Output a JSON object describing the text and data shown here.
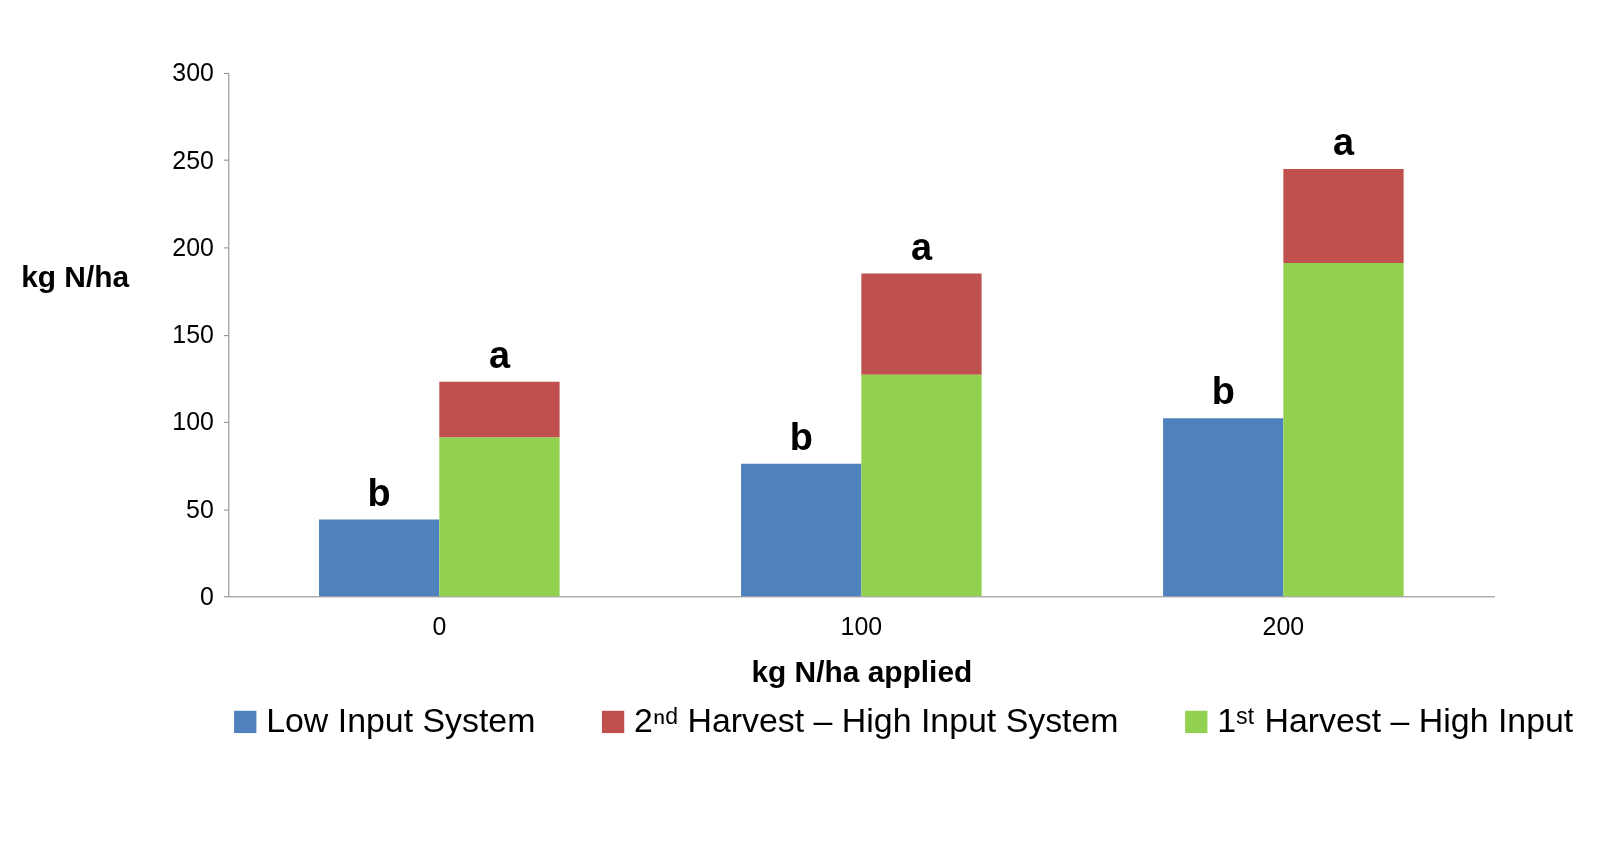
{
  "chart_data": {
    "type": "bar",
    "xlabel": "kg N/ha applied",
    "ylabel": "kg N/ha",
    "categories": [
      "0",
      "100",
      "200"
    ],
    "series": [
      {
        "name": "Low Input System",
        "color": "#4f81bd",
        "values": [
          44,
          76,
          102
        ]
      },
      {
        "name": "2ⁿᵈ Harvest – High Input System",
        "color": "#c0504d",
        "values": [
          32,
          58,
          54
        ],
        "base": [
          91,
          127,
          191
        ]
      },
      {
        "name": "1ˢᵗ Harvest – High Input",
        "color": "#92d050",
        "values": [
          91,
          127,
          191
        ]
      }
    ],
    "ylim": [
      0,
      300
    ],
    "yticks": [
      0,
      50,
      100,
      150,
      200,
      250,
      300
    ],
    "grid": false,
    "legend": "bottom",
    "annotations": [
      {
        "text": "b",
        "x": "0",
        "y": 44
      },
      {
        "text": "a",
        "x": "0",
        "y": 123
      },
      {
        "text": "b",
        "x": "100",
        "y": 76
      },
      {
        "text": "a",
        "x": "100",
        "y": 185
      },
      {
        "text": "b",
        "x": "200",
        "y": 102
      },
      {
        "text": "a",
        "x": "200",
        "y": 245
      }
    ]
  }
}
